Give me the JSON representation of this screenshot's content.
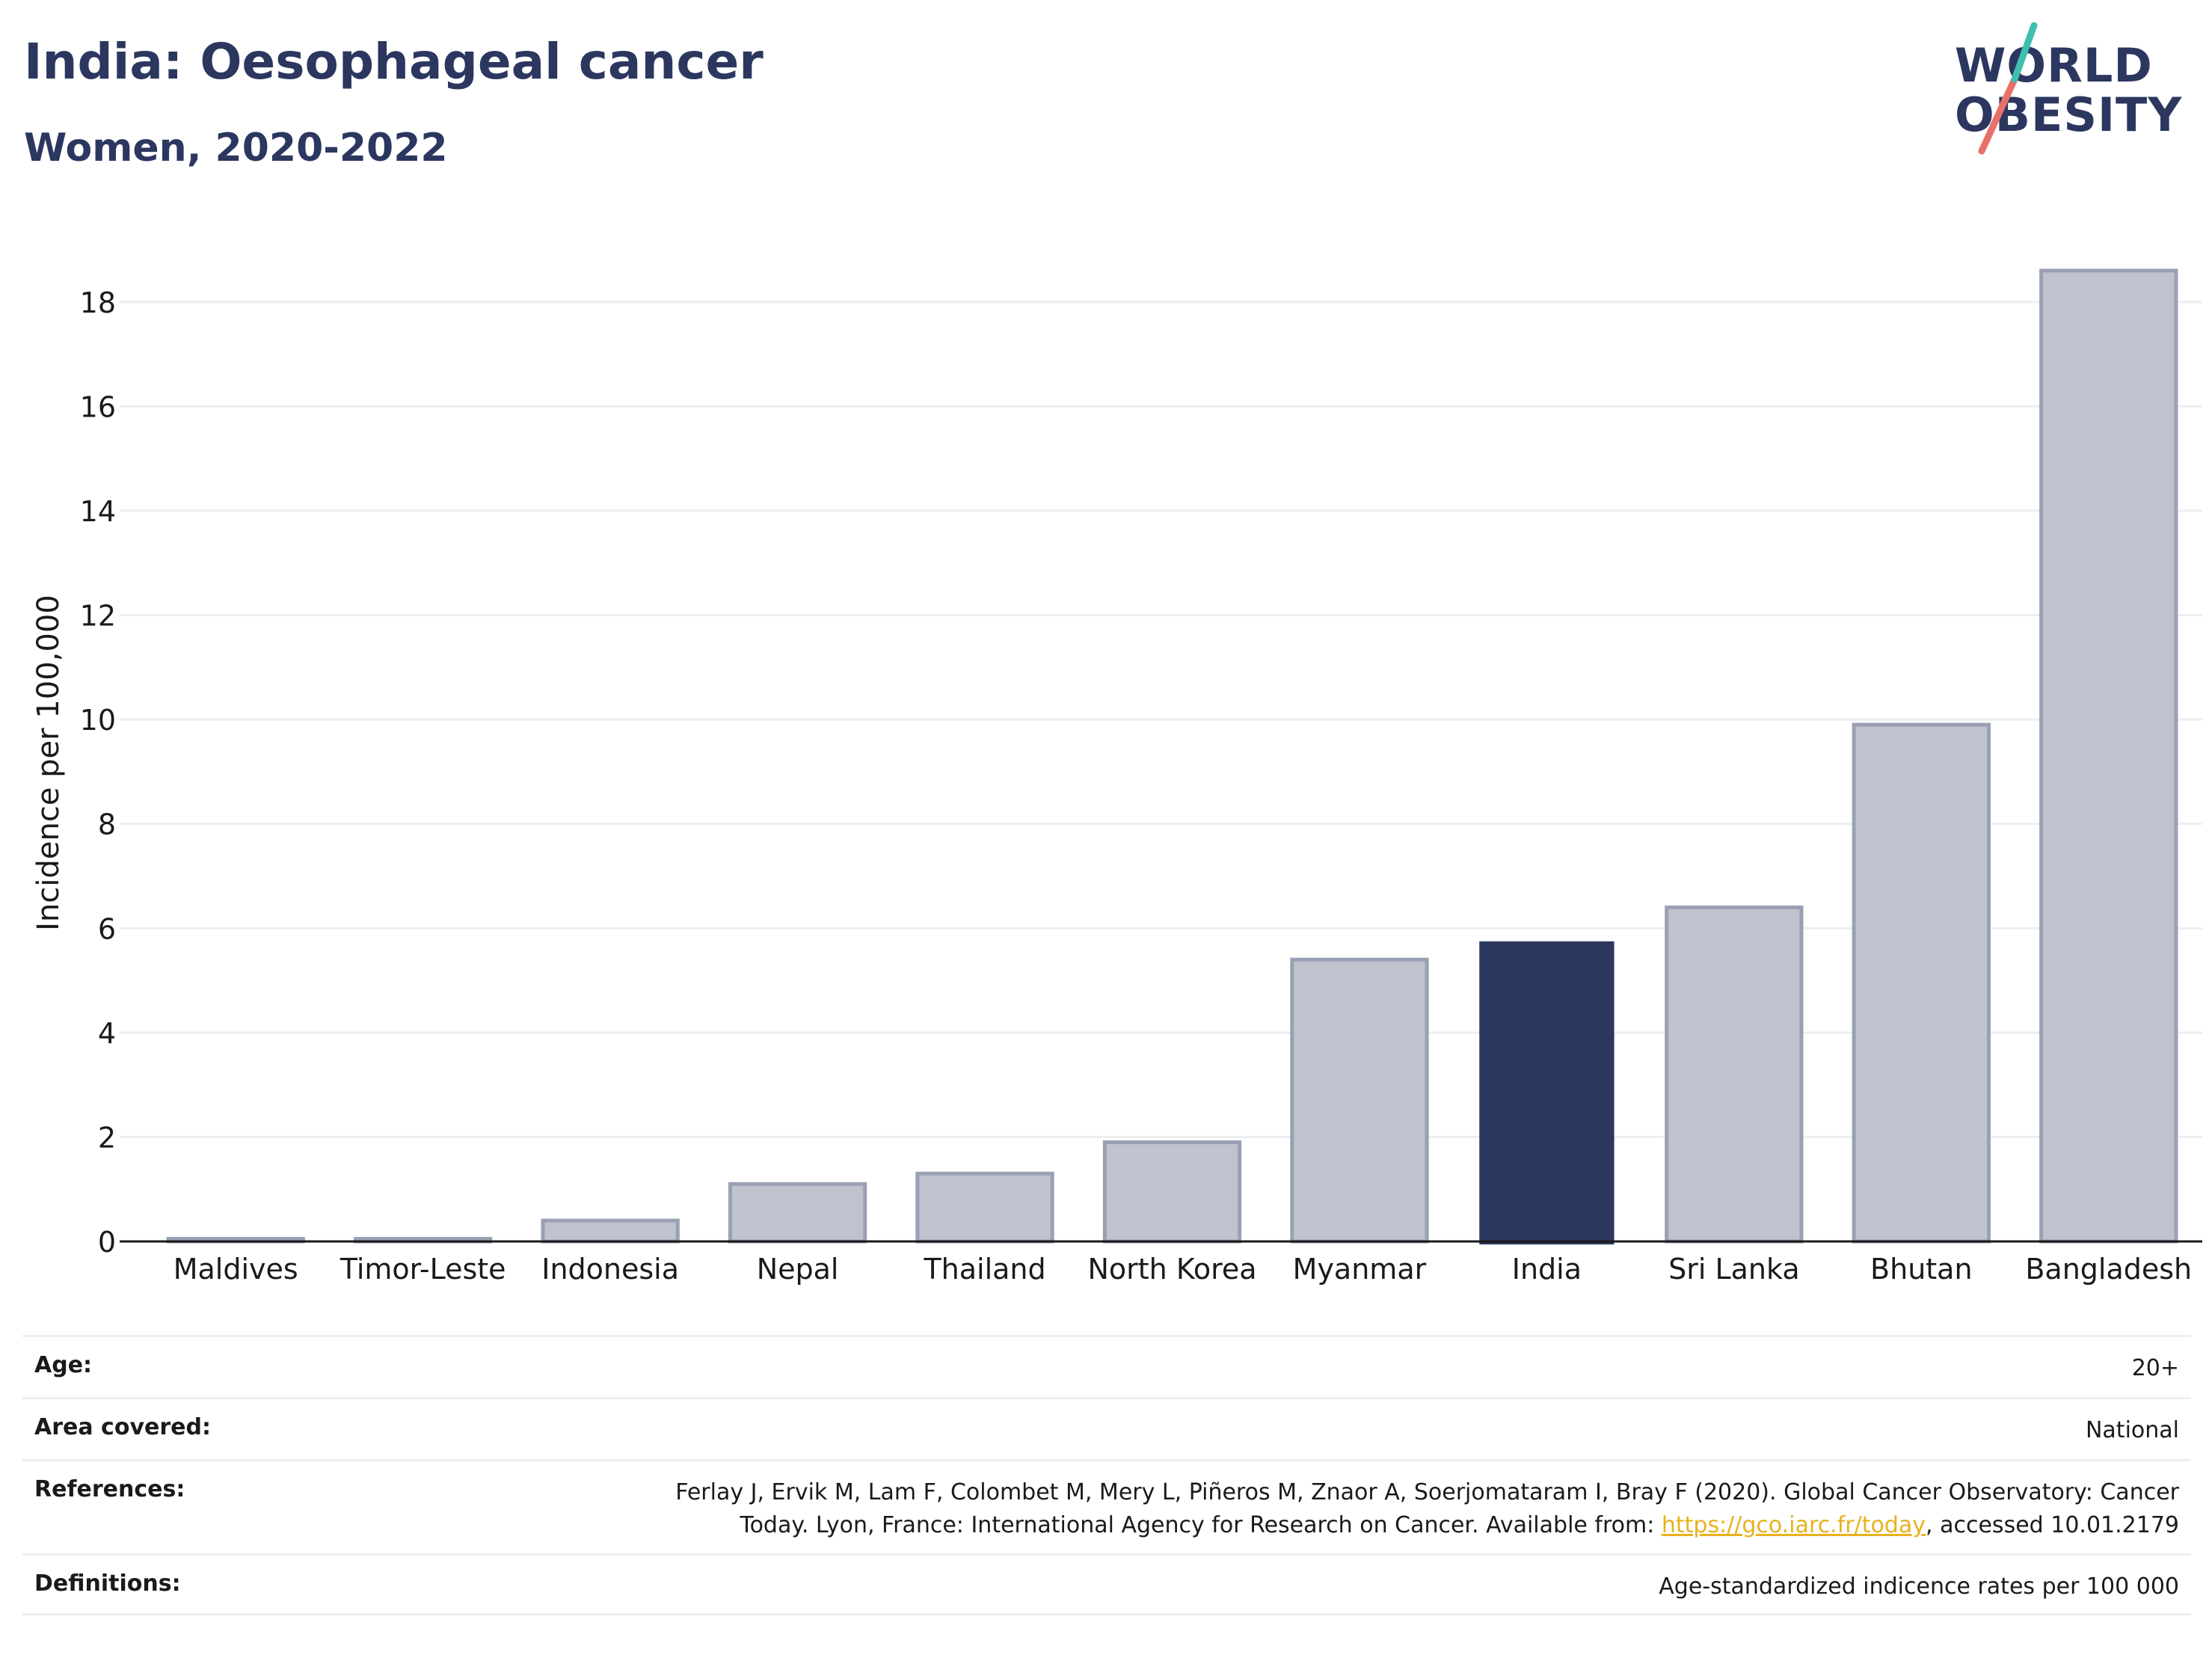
{
  "header": {
    "title": "India: Oesophageal cancer",
    "subtitle": "Women, 2020-2022"
  },
  "logo": {
    "line1": "WORLD",
    "line2": "OBESITY",
    "colors": {
      "text": "#2c3760",
      "slash_teal": "#3fbfad",
      "slash_coral": "#e8706a"
    }
  },
  "chart_data": {
    "type": "bar",
    "categories": [
      "Maldives",
      "Timor-Leste",
      "Indonesia",
      "Nepal",
      "Thailand",
      "North Korea",
      "Myanmar",
      "India",
      "Sri Lanka",
      "Bhutan",
      "Bangladesh"
    ],
    "values": [
      0.05,
      0.05,
      0.4,
      1.1,
      1.3,
      1.9,
      5.4,
      5.75,
      6.4,
      9.9,
      18.6
    ],
    "highlight": "India",
    "title": "",
    "xlabel": "",
    "ylabel": "Incidence per 100,000",
    "ylim": [
      0,
      19.2
    ],
    "yticks": [
      0,
      2,
      4,
      6,
      8,
      10,
      12,
      14,
      16,
      18
    ],
    "grid": true,
    "colors": {
      "bar": "#c0c3ce",
      "bar_edge": "#9aa0b4",
      "highlight": "#2c3760",
      "grid": "#eceef2"
    }
  },
  "meta": {
    "age_label": "Age:",
    "age_value": "20+",
    "area_label": "Area covered:",
    "area_value": "National",
    "references_label": "References:",
    "references_line1": "Ferlay J, Ervik M, Lam F, Colombet M, Mery L, Piñeros M, Znaor A, Soerjomataram I, Bray F (2020). Global Cancer Observatory: Cancer",
    "references_line2_pre": "Today. Lyon, France: International Agency for Research on Cancer. Available from: ",
    "references_link": "https://gco.iarc.fr/today",
    "references_line2_post": ", accessed 10.01.2179",
    "definitions_label": "Definitions:",
    "definitions_value": "Age-standardized indicence rates per 100 000"
  }
}
